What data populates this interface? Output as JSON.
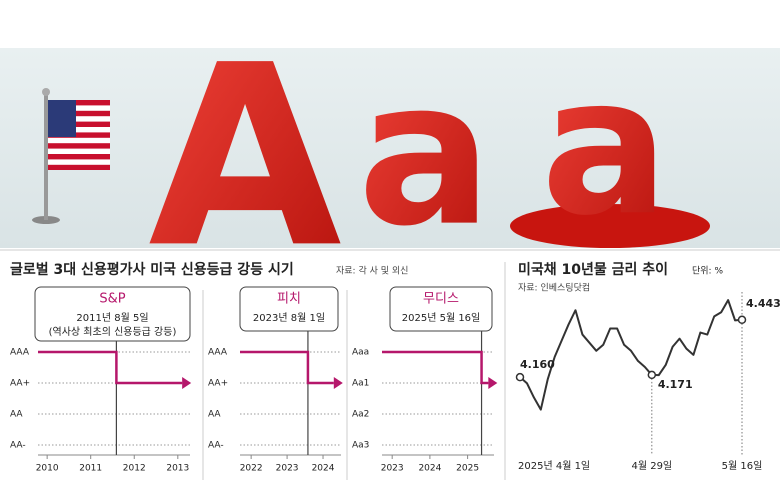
{
  "hero": {
    "letters": [
      "A",
      "a",
      "a"
    ]
  },
  "chart_data": [
    {
      "type": "step",
      "title": "글로벌 3대 신용평가사 미국 신용등급 강등 시기",
      "source": "자료: 각 사 및 외신",
      "panels": [
        {
          "agency": "S&P",
          "date": "2011년 8월 5일",
          "note": "(역사상 최초의 신용등급 강등)",
          "y_categories": [
            "AAA",
            "AA+",
            "AA",
            "AA-"
          ],
          "x": [
            2009.79,
            2011.59,
            2013.1
          ],
          "values": [
            "AAA",
            "AA+",
            "AA+"
          ],
          "xlim": [
            2009.79,
            2013.28
          ],
          "xticks": [
            2010,
            2011,
            2012,
            2013
          ],
          "color": "#b5176b"
        },
        {
          "agency": "피치",
          "date": "2023년 8월 1일",
          "y_categories": [
            "AAA",
            "AA+",
            "AA",
            "AA-"
          ],
          "x": [
            2021.69,
            2023.58,
            2024.3
          ],
          "values": [
            "AAA",
            "AA+",
            "AA+"
          ],
          "xlim": [
            2021.69,
            2024.5
          ],
          "xticks": [
            2022,
            2023,
            2024
          ],
          "color": "#b5176b"
        },
        {
          "agency": "무디스",
          "date": "2025년 5월 16일",
          "y_categories": [
            "Aaa",
            "Aa1",
            "Aa2",
            "Aa3"
          ],
          "x": [
            2022.73,
            2025.37,
            2025.55
          ],
          "values": [
            "Aaa",
            "Aa1",
            "Aa1"
          ],
          "xlim": [
            2022.73,
            2025.7
          ],
          "xticks": [
            2023,
            2024,
            2025
          ],
          "color": "#b5176b"
        }
      ]
    },
    {
      "type": "line",
      "title": "미국채 10년물 금리 추이",
      "unit": "단위: %",
      "source": "자료: 인베스팅닷컴",
      "categories": [
        "2025년 4월 1일",
        null,
        null,
        null,
        null,
        null,
        null,
        null,
        null,
        null,
        null,
        null,
        null,
        null,
        null,
        null,
        null,
        null,
        null,
        "4월 29일",
        null,
        null,
        null,
        null,
        null,
        null,
        null,
        null,
        null,
        null,
        null,
        null,
        "5월 16일"
      ],
      "values": [
        4.16,
        4.13,
        4.06,
        4.0,
        4.15,
        4.26,
        4.34,
        4.42,
        4.49,
        4.37,
        4.33,
        4.29,
        4.32,
        4.4,
        4.4,
        4.32,
        4.29,
        4.24,
        4.21,
        4.171,
        4.17,
        4.22,
        4.31,
        4.35,
        4.3,
        4.27,
        4.38,
        4.37,
        4.46,
        4.48,
        4.54,
        4.44,
        4.443
      ],
      "value_labels": [
        "4.160",
        null,
        null,
        null,
        null,
        null,
        null,
        null,
        null,
        null,
        null,
        null,
        null,
        null,
        null,
        null,
        null,
        null,
        null,
        "4.171",
        null,
        null,
        null,
        null,
        null,
        null,
        null,
        null,
        null,
        null,
        null,
        null,
        "4.443"
      ],
      "ylim": [
        3.85,
        4.58
      ],
      "color": "#333333"
    }
  ]
}
